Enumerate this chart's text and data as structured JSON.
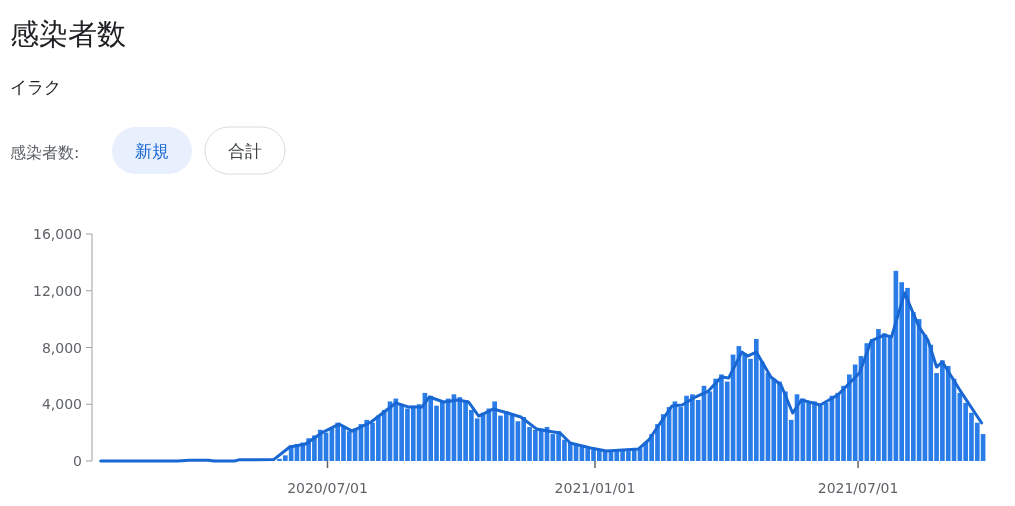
{
  "chart_data": {
    "type": "bar",
    "title": "感染者数",
    "subtitle": "イラク",
    "annotations": [
      "感染者数:",
      "新規",
      "合計"
    ],
    "xlim": [
      "2020-01-21",
      "2021-09-27"
    ],
    "xticks": [
      {
        "value": "2020-07-01",
        "label": "2020/07/01"
      },
      {
        "value": "2021-01-01",
        "label": "2021/01/01"
      },
      {
        "value": "2021-07-01",
        "label": "2021/07/01"
      }
    ],
    "ylim": [
      0,
      16000
    ],
    "yticks": [
      0,
      {
        "value": 4000,
        "label": "4,000"
      },
      {
        "value": 8000,
        "label": "8,000"
      },
      {
        "value": 12000,
        "label": "12,000"
      },
      {
        "value": 16000,
        "label": "16,000"
      }
    ],
    "grid": false,
    "series": [
      {
        "color": "#2a7de8",
        "x": [
          "2020-05-29",
          "2020-06-02",
          "2020-06-06",
          "2020-06-10",
          "2020-06-14",
          "2020-06-18",
          "2020-06-22",
          "2020-06-26",
          "2020-06-30",
          "2020-07-04",
          "2020-07-08",
          "2020-07-12",
          "2020-07-16",
          "2020-07-20",
          "2020-07-24",
          "2020-07-28",
          "2020-08-01",
          "2020-08-05",
          "2020-08-09",
          "2020-08-13",
          "2020-08-17",
          "2020-08-21",
          "2020-08-25",
          "2020-08-29",
          "2020-09-02",
          "2020-09-06",
          "2020-09-10",
          "2020-09-14",
          "2020-09-18",
          "2020-09-22",
          "2020-09-26",
          "2020-09-30",
          "2020-10-04",
          "2020-10-08",
          "2020-10-12",
          "2020-10-16",
          "2020-10-20",
          "2020-10-24",
          "2020-10-28",
          "2020-11-01",
          "2020-11-05",
          "2020-11-09",
          "2020-11-13",
          "2020-11-17",
          "2020-11-21",
          "2020-11-25",
          "2020-11-29",
          "2020-12-03",
          "2020-12-07",
          "2020-12-11",
          "2020-12-15",
          "2020-12-19",
          "2020-12-23",
          "2020-12-27",
          "2020-12-31",
          "2021-01-04",
          "2021-01-08",
          "2021-01-12",
          "2021-01-16",
          "2021-01-20",
          "2021-01-24",
          "2021-01-28",
          "2021-02-01",
          "2021-02-05",
          "2021-02-09",
          "2021-02-13",
          "2021-02-17",
          "2021-02-21",
          "2021-02-25",
          "2021-03-01",
          "2021-03-05",
          "2021-03-09",
          "2021-03-13",
          "2021-03-17",
          "2021-03-21",
          "2021-03-25",
          "2021-03-29",
          "2021-04-02",
          "2021-04-06",
          "2021-04-10",
          "2021-04-14",
          "2021-04-18",
          "2021-04-22",
          "2021-04-26",
          "2021-04-30",
          "2021-05-04",
          "2021-05-08",
          "2021-05-12",
          "2021-05-16",
          "2021-05-20",
          "2021-05-24",
          "2021-05-28",
          "2021-06-01",
          "2021-06-05",
          "2021-06-09",
          "2021-06-13",
          "2021-06-17",
          "2021-06-21",
          "2021-06-25",
          "2021-06-29",
          "2021-07-03",
          "2021-07-07",
          "2021-07-11",
          "2021-07-15",
          "2021-07-19",
          "2021-07-23",
          "2021-07-27",
          "2021-07-31",
          "2021-08-04",
          "2021-08-08",
          "2021-08-12",
          "2021-08-16",
          "2021-08-20",
          "2021-08-24",
          "2021-08-28",
          "2021-09-01",
          "2021-09-05",
          "2021-09-09",
          "2021-09-13",
          "2021-09-17",
          "2021-09-21",
          "2021-09-25"
        ],
        "values": [
          150,
          400,
          1100,
          1200,
          1300,
          1600,
          1800,
          2200,
          2000,
          2300,
          2700,
          2400,
          2100,
          2300,
          2600,
          2900,
          2700,
          3200,
          3600,
          4200,
          4400,
          4000,
          3700,
          3900,
          4000,
          4800,
          4600,
          3900,
          4200,
          4400,
          4700,
          4500,
          4300,
          3600,
          3000,
          3400,
          3700,
          4200,
          3200,
          3500,
          3300,
          2800,
          3100,
          2400,
          2200,
          2300,
          2400,
          1900,
          2100,
          1500,
          1300,
          1200,
          1000,
          900,
          800,
          750,
          700,
          650,
          700,
          750,
          700,
          800,
          900,
          1300,
          1900,
          2600,
          3300,
          3800,
          4200,
          3800,
          4600,
          4700,
          4300,
          5300,
          4900,
          5800,
          6100,
          5600,
          7500,
          8100,
          7600,
          7200,
          8600,
          7000,
          6200,
          5800,
          5600,
          4900,
          2900,
          4700,
          4400,
          4100,
          4200,
          3900,
          4100,
          4600,
          4800,
          5300,
          6100,
          6800,
          7400,
          8300,
          8600,
          9300,
          9000,
          8800,
          13400,
          12600,
          12200,
          10500,
          10000,
          8900,
          8200,
          6200,
          7100,
          6700,
          5800,
          4800,
          4100,
          3400,
          2700,
          1900
        ]
      },
      {
        "type": "line",
        "color": "#1967d2",
        "x": [
          "2020-01-27",
          "2020-03-20",
          "2020-03-28",
          "2020-04-10",
          "2020-04-14",
          "2020-04-28",
          "2020-05-01",
          "2020-05-25",
          "2020-06-05",
          "2020-06-16",
          "2020-06-28",
          "2020-07-09",
          "2020-07-18",
          "2020-07-31",
          "2020-08-17",
          "2020-08-26",
          "2020-09-04",
          "2020-09-09",
          "2020-09-19",
          "2020-09-29",
          "2020-10-06",
          "2020-10-13",
          "2020-10-23",
          "2020-11-02",
          "2020-11-11",
          "2020-11-22",
          "2020-11-25",
          "2020-12-08",
          "2020-12-15",
          "2020-12-29",
          "2021-01-09",
          "2021-01-31",
          "2021-02-07",
          "2021-02-23",
          "2021-03-02",
          "2021-03-11",
          "2021-03-20",
          "2021-03-29",
          "2021-04-03",
          "2021-04-12",
          "2021-04-16",
          "2021-04-22",
          "2021-05-02",
          "2021-05-09",
          "2021-05-17",
          "2021-05-23",
          "2021-06-05",
          "2021-06-17",
          "2021-07-02",
          "2021-07-10",
          "2021-07-19",
          "2021-07-24",
          "2021-08-02",
          "2021-08-12",
          "2021-08-18",
          "2021-08-24",
          "2021-08-28",
          "2021-09-09",
          "2021-09-24"
        ],
        "values": [
          0,
          0,
          60,
          60,
          0,
          0,
          80,
          100,
          990,
          1200,
          2040,
          2600,
          2110,
          2750,
          4090,
          3800,
          3800,
          4510,
          4160,
          4300,
          4160,
          3170,
          3660,
          3380,
          3100,
          2250,
          2180,
          1970,
          1270,
          920,
          700,
          850,
          1480,
          3880,
          3950,
          4510,
          4930,
          5920,
          5850,
          7680,
          7400,
          7680,
          5920,
          5360,
          3380,
          4300,
          3950,
          4650,
          6200,
          8460,
          8880,
          8740,
          11840,
          9440,
          8530,
          6620,
          6980,
          5000,
          2680
        ]
      }
    ]
  }
}
